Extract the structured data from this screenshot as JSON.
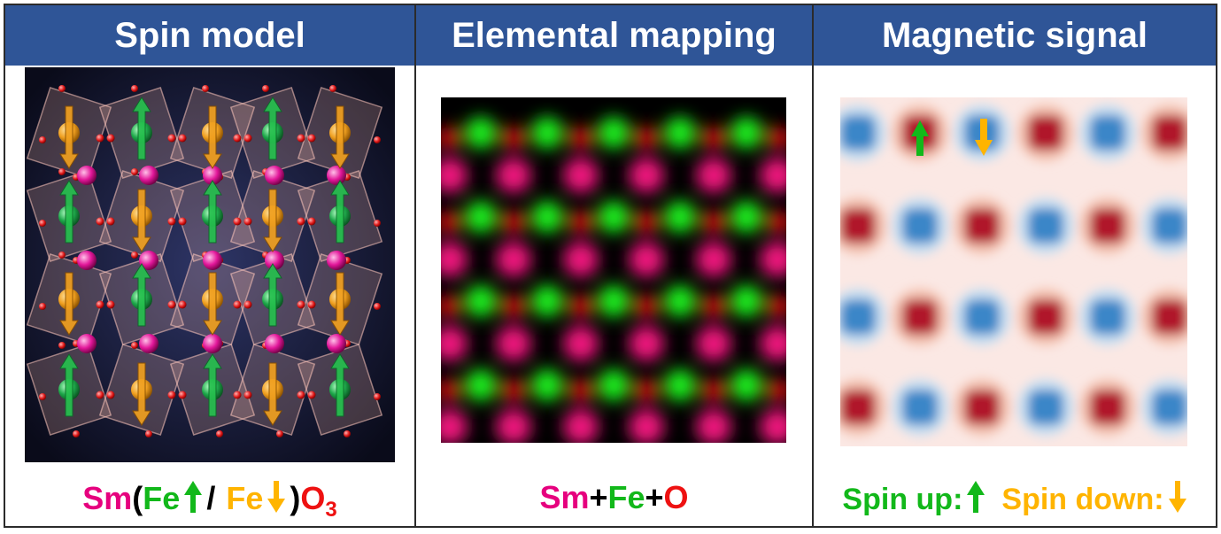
{
  "panels": [
    {
      "title": "Spin model"
    },
    {
      "title": "Elemental mapping"
    },
    {
      "title": "Magnetic signal"
    }
  ],
  "captions": {
    "spin_model": {
      "sm": "Sm",
      "open": "(",
      "fe1": "Fe",
      "slash": "/",
      "fe2": "Fe",
      "close": ")",
      "o": "O",
      "sub": "3"
    },
    "mapping": {
      "sm": "Sm",
      "plus1": "+",
      "fe": "Fe",
      "plus2": "+",
      "o": "O"
    },
    "magnetic": {
      "up": "Spin up:",
      "down": "Spin down:"
    }
  },
  "colors": {
    "header": "#2f5597",
    "sm": "#e6007e",
    "fe_up": "#12b81a",
    "fe_down": "#ffb400",
    "oxygen": "#ee1111",
    "spin_up_map": "#c0191e",
    "spin_down_map": "#2d7fc1"
  },
  "icons": {
    "up": "arrow-up-icon",
    "down": "arrow-down-icon"
  }
}
